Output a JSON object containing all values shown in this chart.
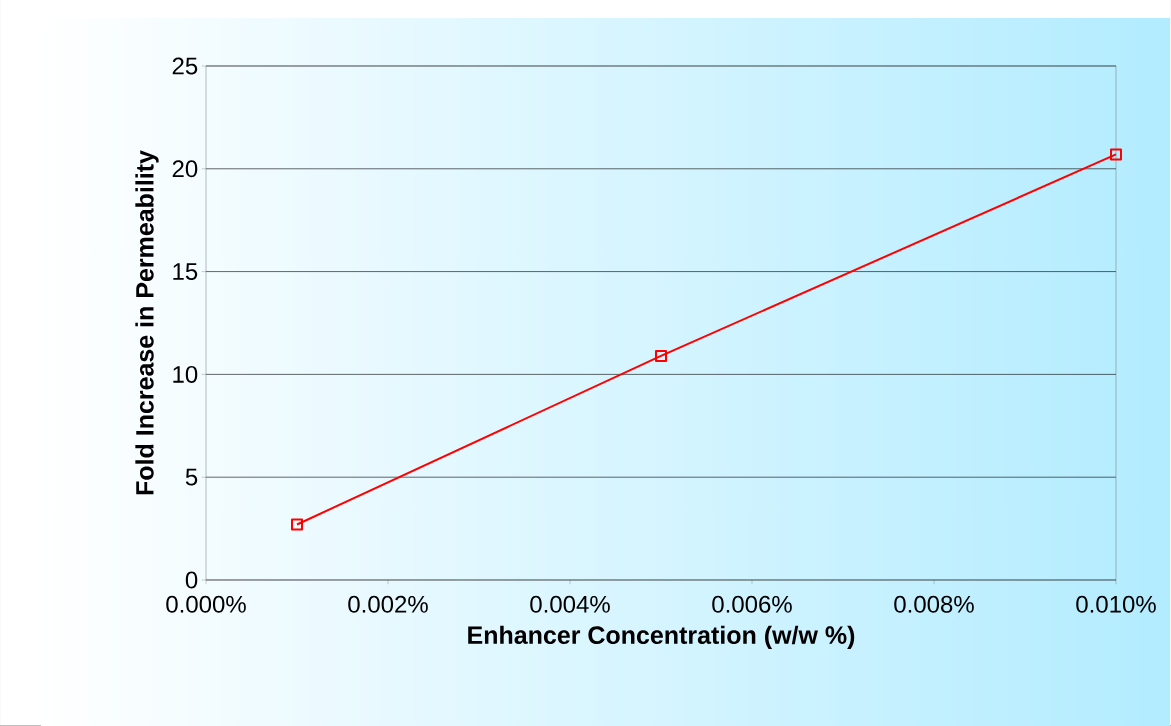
{
  "chart_data": {
    "type": "line",
    "xlabel": "Enhancer Concentration (w/w %)",
    "ylabel": "Fold Increase in Permeability",
    "x": [
      0.001,
      0.005,
      0.01
    ],
    "series": [
      {
        "color": "#ff0000",
        "values": [
          2.7,
          10.9,
          20.7
        ]
      }
    ],
    "xlim": [
      0,
      0.01
    ],
    "xticks": [
      {
        "value": 0,
        "label": "0.000%"
      },
      {
        "value": 0.002,
        "label": "0.002%"
      },
      {
        "value": 0.004,
        "label": "0.004%"
      },
      {
        "value": 0.006,
        "label": "0.006%"
      },
      {
        "value": 0.008,
        "label": "0.008%"
      },
      {
        "value": 0.01,
        "label": "0.010%"
      }
    ],
    "ylim": [
      0,
      25
    ],
    "yticks": [
      0,
      5,
      10,
      15,
      20,
      25
    ],
    "grid": "y",
    "marker": "square",
    "line_style": "solid"
  }
}
